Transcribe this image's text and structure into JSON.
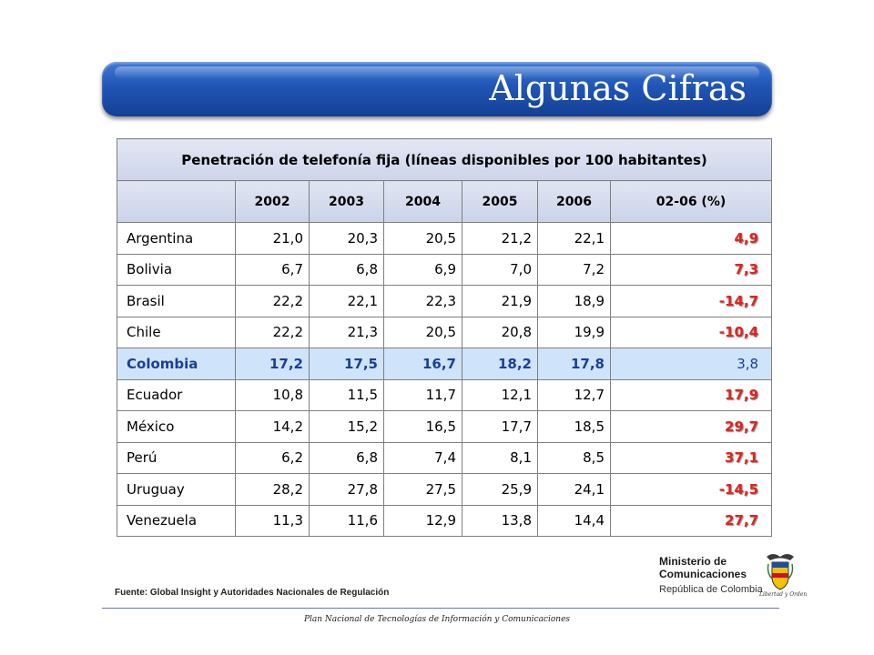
{
  "slide": {
    "title": "Algunas Cifras",
    "source": "Fuente: Global Insight y Autoridades Nacionales de Regulación",
    "footer": "Plan Nacional de Tecnologías de Información y Comunicaciones"
  },
  "logo": {
    "line1": "Ministerio de",
    "line2": "Comunicaciones",
    "line3": "República de Colombia",
    "motto": "Libertad y Orden"
  },
  "table": {
    "caption": "Penetración de telefonía fija (líneas disponibles por 100 habitantes)",
    "headers": [
      "",
      "2002",
      "2003",
      "2004",
      "2005",
      "2006",
      "02-06 (%)"
    ],
    "rows": [
      {
        "country": "Argentina",
        "values": [
          "21,0",
          "20,3",
          "20,5",
          "21,2",
          "22,1"
        ],
        "change": "4,9"
      },
      {
        "country": "Bolivia",
        "values": [
          "6,7",
          "6,8",
          "6,9",
          "7,0",
          "7,2"
        ],
        "change": "7,3"
      },
      {
        "country": "Brasil",
        "values": [
          "22,2",
          "22,1",
          "22,3",
          "21,9",
          "18,9"
        ],
        "change": "-14,7"
      },
      {
        "country": "Chile",
        "values": [
          "22,2",
          "21,3",
          "20,5",
          "20,8",
          "19,9"
        ],
        "change": "-10,4"
      },
      {
        "country": "Colombia",
        "values": [
          "17,2",
          "17,5",
          "16,7",
          "18,2",
          "17,8"
        ],
        "change": "3,8",
        "highlight": true
      },
      {
        "country": "Ecuador",
        "values": [
          "10,8",
          "11,5",
          "11,7",
          "12,1",
          "12,7"
        ],
        "change": "17,9"
      },
      {
        "country": "México",
        "values": [
          "14,2",
          "15,2",
          "16,5",
          "17,7",
          "18,5"
        ],
        "change": "29,7"
      },
      {
        "country": "Perú",
        "values": [
          "6,2",
          "6,8",
          "7,4",
          "8,1",
          "8,5"
        ],
        "change": "37,1"
      },
      {
        "country": "Uruguay",
        "values": [
          "28,2",
          "27,8",
          "27,5",
          "25,9",
          "24,1"
        ],
        "change": "-14,5"
      },
      {
        "country": "Venezuela",
        "values": [
          "11,3",
          "11,6",
          "12,9",
          "13,8",
          "14,4"
        ],
        "change": "27,7"
      }
    ]
  },
  "colors": {
    "banner": "#2157b7",
    "highlight_row": "#cfe3fb",
    "highlight_text": "#1b3f95",
    "change_text": "#e5221a"
  }
}
